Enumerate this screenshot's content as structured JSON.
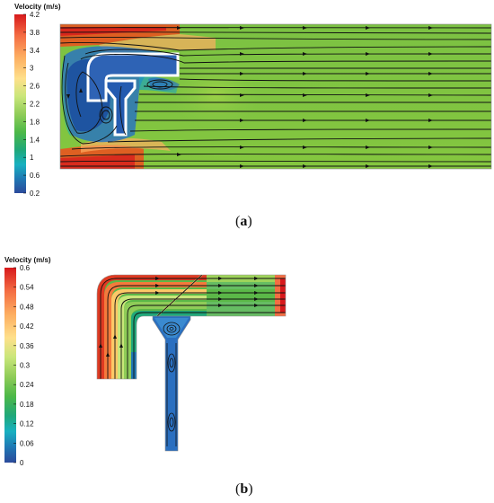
{
  "figure": {
    "panels": [
      {
        "id": "a",
        "caption_open": "(",
        "caption_letter": "a",
        "caption_close": ")",
        "colorbar": {
          "title": "Velocity (m/s)",
          "ticks": [
            "4.2",
            "3.8",
            "3.4",
            "3",
            "2.6",
            "2.2",
            "1.8",
            "1.4",
            "1",
            "0.6",
            "0.2"
          ]
        }
      },
      {
        "id": "b",
        "caption_open": "(",
        "caption_letter": "b",
        "caption_close": ")",
        "colorbar": {
          "title": "Velocity (m/s)",
          "ticks": [
            "0.6",
            "0.54",
            "0.48",
            "0.42",
            "0.36",
            "0.3",
            "0.24",
            "0.18",
            "0.12",
            "0.06",
            "0"
          ]
        }
      }
    ],
    "colormap": [
      "#d7191c",
      "#f46d43",
      "#fdae61",
      "#fee08b",
      "#d9ef8b",
      "#a6d96a",
      "#66bd63",
      "#1a9850",
      "#17b0b0",
      "#1f78b4",
      "#2b4a9b"
    ]
  }
}
